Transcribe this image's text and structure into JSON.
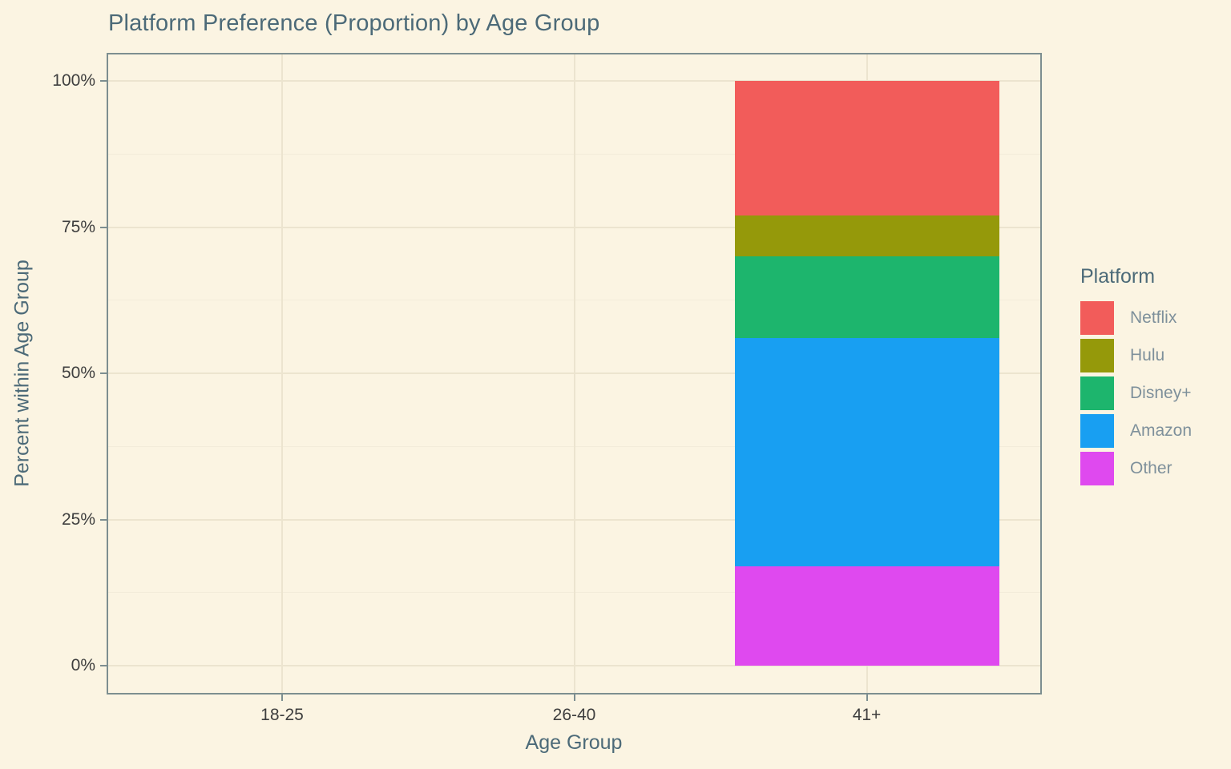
{
  "page": {
    "background": "#FBF4E2",
    "panel_border_color": "#7D8E90",
    "gridline_color": "#ECE4CF",
    "title_color": "#4C6A78",
    "tick_label_color": "#3E3E3E",
    "legend_label_color": "#7E909B"
  },
  "chart_data": {
    "type": "bar",
    "stacked": true,
    "normalized": "percent",
    "title": "Platform Preference (Proportion) by Age Group",
    "xlabel": "Age Group",
    "ylabel": "Percent within Age Group",
    "categories": [
      "18-25",
      "26-40",
      "41+"
    ],
    "series": [
      {
        "name": "Netflix",
        "color": "#F25C5A",
        "values": [
          0,
          0,
          23
        ]
      },
      {
        "name": "Hulu",
        "color": "#95990A",
        "values": [
          0,
          0,
          7
        ]
      },
      {
        "name": "Disney+",
        "color": "#1DB56D",
        "values": [
          0,
          0,
          14
        ]
      },
      {
        "name": "Amazon",
        "color": "#189FF2",
        "values": [
          0,
          0,
          39
        ]
      },
      {
        "name": "Other",
        "color": "#DF49EF",
        "values": [
          0,
          0,
          17
        ]
      }
    ],
    "stack_order_bottom_to_top": [
      "Other",
      "Amazon",
      "Disney+",
      "Hulu",
      "Netflix"
    ],
    "ylim": [
      0,
      100
    ],
    "y_ticks": [
      0,
      25,
      50,
      75,
      100
    ],
    "y_tick_labels": [
      "0%",
      "25%",
      "50%",
      "75%",
      "100%"
    ],
    "y_minor_ticks": [
      12.5,
      37.5,
      62.5,
      87.5
    ],
    "grid": true,
    "legend": {
      "title": "Platform",
      "position": "right",
      "entries": [
        "Netflix",
        "Hulu",
        "Disney+",
        "Amazon",
        "Other"
      ]
    }
  }
}
